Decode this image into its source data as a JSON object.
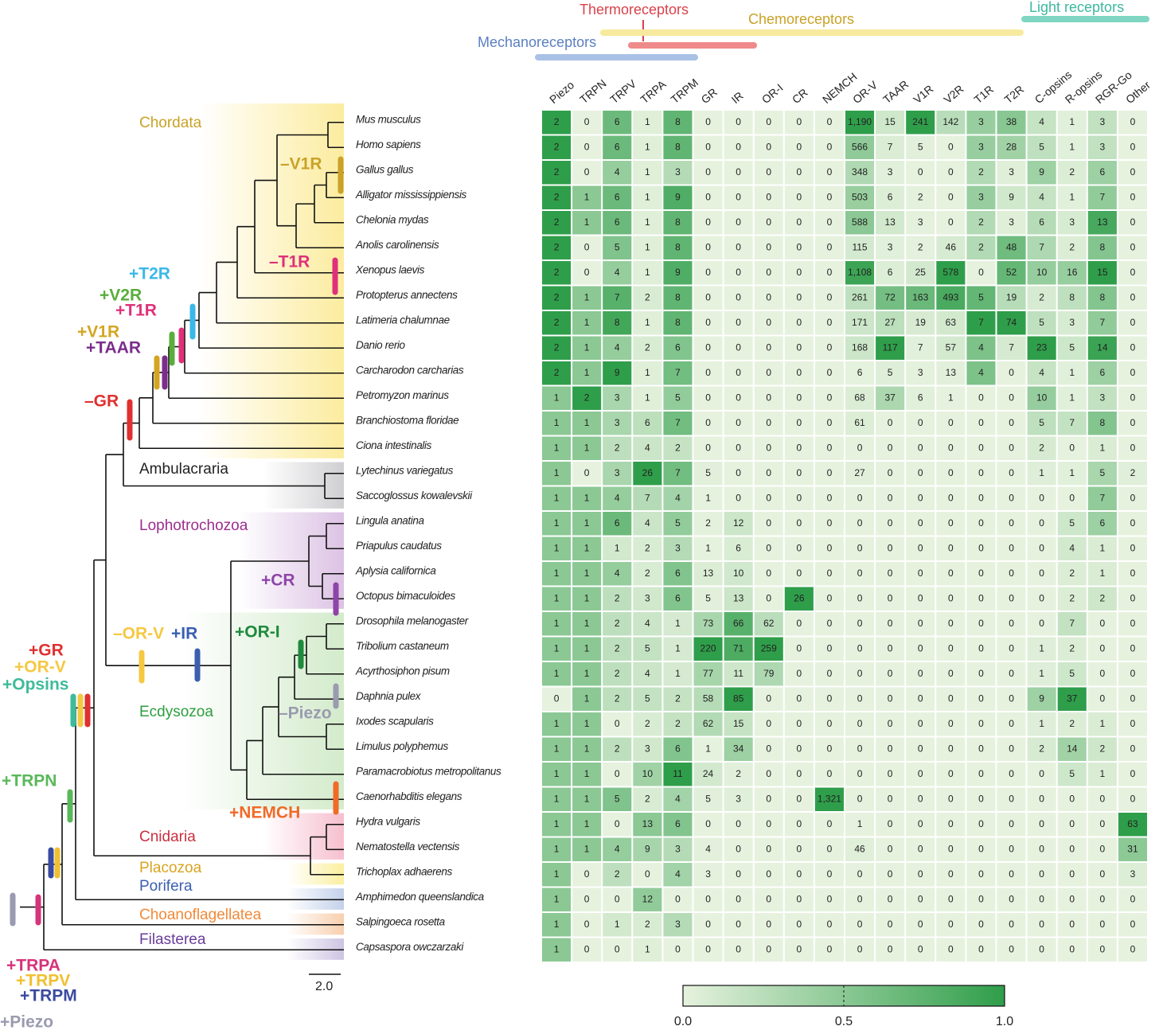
{
  "chart_data": {
    "type": "heatmap",
    "categories": [
      "Piezo",
      "TRPN",
      "TRPV",
      "TRPA",
      "TRPM",
      "GR",
      "IR",
      "OR-I",
      "CR",
      "NEMCH",
      "OR-V",
      "TAAR",
      "V1R",
      "V2R",
      "T1R",
      "T2R",
      "C-opsins",
      "R-opsins",
      "RGR-Go",
      "Other"
    ],
    "series": [
      {
        "name": "Mus musculus",
        "values": [
          2,
          0,
          6,
          1,
          8,
          0,
          0,
          0,
          0,
          0,
          1190,
          15,
          241,
          142,
          3,
          38,
          4,
          1,
          3,
          0
        ],
        "value_labels": [
          "2",
          "0",
          "6",
          "1",
          "8",
          "0",
          "0",
          "0",
          "0",
          "0",
          "1,190",
          "15",
          "241",
          "142",
          "3",
          "38",
          "4",
          "1",
          "3",
          "0"
        ]
      },
      {
        "name": "Homo sapiens",
        "values": [
          2,
          0,
          6,
          1,
          8,
          0,
          0,
          0,
          0,
          0,
          566,
          7,
          5,
          0,
          3,
          28,
          5,
          1,
          3,
          0
        ]
      },
      {
        "name": "Gallus gallus",
        "values": [
          2,
          0,
          4,
          1,
          3,
          0,
          0,
          0,
          0,
          0,
          348,
          3,
          0,
          0,
          2,
          3,
          9,
          2,
          6,
          0
        ]
      },
      {
        "name": "Alligator mississippiensis",
        "values": [
          2,
          1,
          6,
          1,
          9,
          0,
          0,
          0,
          0,
          0,
          503,
          6,
          2,
          0,
          3,
          9,
          4,
          1,
          7,
          0
        ]
      },
      {
        "name": "Chelonia mydas",
        "values": [
          2,
          1,
          6,
          1,
          8,
          0,
          0,
          0,
          0,
          0,
          588,
          13,
          3,
          0,
          2,
          3,
          6,
          3,
          13,
          0
        ]
      },
      {
        "name": "Anolis carolinensis",
        "values": [
          2,
          0,
          5,
          1,
          8,
          0,
          0,
          0,
          0,
          0,
          115,
          3,
          2,
          46,
          2,
          48,
          7,
          2,
          8,
          0
        ]
      },
      {
        "name": "Xenopus laevis",
        "values": [
          2,
          0,
          4,
          1,
          9,
          0,
          0,
          0,
          0,
          0,
          1108,
          6,
          25,
          578,
          0,
          52,
          10,
          16,
          15,
          0
        ],
        "value_labels": [
          "2",
          "0",
          "4",
          "1",
          "9",
          "0",
          "0",
          "0",
          "0",
          "0",
          "1,108",
          "6",
          "25",
          "578",
          "0",
          "52",
          "10",
          "16",
          "15",
          "0"
        ]
      },
      {
        "name": "Protopterus annectens",
        "values": [
          2,
          1,
          7,
          2,
          8,
          0,
          0,
          0,
          0,
          0,
          261,
          72,
          163,
          493,
          5,
          19,
          2,
          8,
          8,
          0
        ]
      },
      {
        "name": "Latimeria chalumnae",
        "values": [
          2,
          1,
          8,
          1,
          8,
          0,
          0,
          0,
          0,
          0,
          171,
          27,
          19,
          63,
          7,
          74,
          5,
          3,
          7,
          0
        ]
      },
      {
        "name": "Danio rerio",
        "values": [
          2,
          1,
          4,
          2,
          6,
          0,
          0,
          0,
          0,
          0,
          168,
          117,
          7,
          57,
          4,
          7,
          23,
          5,
          14,
          0
        ]
      },
      {
        "name": "Carcharodon carcharias",
        "values": [
          2,
          1,
          9,
          1,
          7,
          0,
          0,
          0,
          0,
          0,
          6,
          5,
          3,
          13,
          4,
          0,
          4,
          1,
          6,
          0
        ]
      },
      {
        "name": "Petromyzon marinus",
        "values": [
          1,
          2,
          3,
          1,
          5,
          0,
          0,
          0,
          0,
          0,
          68,
          37,
          6,
          1,
          0,
          0,
          10,
          1,
          3,
          0
        ]
      },
      {
        "name": "Branchiostoma floridae",
        "values": [
          1,
          1,
          3,
          6,
          7,
          0,
          0,
          0,
          0,
          0,
          61,
          0,
          0,
          0,
          0,
          0,
          5,
          7,
          8,
          0
        ]
      },
      {
        "name": "Ciona intestinalis",
        "values": [
          1,
          1,
          2,
          4,
          2,
          0,
          0,
          0,
          0,
          0,
          0,
          0,
          0,
          0,
          0,
          0,
          2,
          0,
          1,
          0
        ]
      },
      {
        "name": "Lytechinus variegatus",
        "values": [
          1,
          0,
          3,
          26,
          7,
          5,
          0,
          0,
          0,
          0,
          27,
          0,
          0,
          0,
          0,
          0,
          1,
          1,
          5,
          2
        ]
      },
      {
        "name": "Saccoglossus kowalevskii",
        "values": [
          1,
          1,
          4,
          7,
          4,
          1,
          0,
          0,
          0,
          0,
          0,
          0,
          0,
          0,
          0,
          0,
          0,
          0,
          7,
          0
        ]
      },
      {
        "name": "Lingula anatina",
        "values": [
          1,
          1,
          6,
          4,
          5,
          2,
          12,
          0,
          0,
          0,
          0,
          0,
          0,
          0,
          0,
          0,
          0,
          5,
          6,
          0
        ]
      },
      {
        "name": "Priapulus caudatus",
        "values": [
          1,
          1,
          1,
          2,
          3,
          1,
          6,
          0,
          0,
          0,
          0,
          0,
          0,
          0,
          0,
          0,
          0,
          4,
          1,
          0
        ]
      },
      {
        "name": "Aplysia californica",
        "values": [
          1,
          1,
          4,
          2,
          6,
          13,
          10,
          0,
          0,
          0,
          0,
          0,
          0,
          0,
          0,
          0,
          0,
          2,
          1,
          0
        ]
      },
      {
        "name": "Octopus bimaculoides",
        "values": [
          1,
          1,
          2,
          3,
          6,
          5,
          13,
          0,
          26,
          0,
          0,
          0,
          0,
          0,
          0,
          0,
          0,
          2,
          2,
          0
        ]
      },
      {
        "name": "Drosophila melanogaster",
        "values": [
          1,
          1,
          2,
          4,
          1,
          73,
          66,
          62,
          0,
          0,
          0,
          0,
          0,
          0,
          0,
          0,
          0,
          7,
          0,
          0
        ]
      },
      {
        "name": "Tribolium castaneum",
        "values": [
          1,
          1,
          2,
          5,
          1,
          220,
          71,
          259,
          0,
          0,
          0,
          0,
          0,
          0,
          0,
          0,
          1,
          2,
          0,
          0
        ]
      },
      {
        "name": "Acyrthosiphon pisum",
        "values": [
          1,
          1,
          2,
          4,
          1,
          77,
          11,
          79,
          0,
          0,
          0,
          0,
          0,
          0,
          0,
          0,
          1,
          5,
          0,
          0
        ]
      },
      {
        "name": "Daphnia pulex",
        "values": [
          0,
          1,
          2,
          5,
          2,
          58,
          85,
          0,
          0,
          0,
          0,
          0,
          0,
          0,
          0,
          0,
          9,
          37,
          0,
          0
        ]
      },
      {
        "name": "Ixodes scapularis",
        "values": [
          1,
          1,
          0,
          2,
          2,
          62,
          15,
          0,
          0,
          0,
          0,
          0,
          0,
          0,
          0,
          0,
          1,
          2,
          1,
          0
        ]
      },
      {
        "name": "Limulus polyphemus",
        "values": [
          1,
          1,
          2,
          3,
          6,
          1,
          34,
          0,
          0,
          0,
          0,
          0,
          0,
          0,
          0,
          0,
          2,
          14,
          2,
          0
        ]
      },
      {
        "name": "Paramacrobiotus metropolitanus",
        "values": [
          1,
          1,
          0,
          10,
          11,
          24,
          2,
          0,
          0,
          0,
          0,
          0,
          0,
          0,
          0,
          0,
          0,
          5,
          1,
          0
        ]
      },
      {
        "name": "Caenorhabditis elegans",
        "values": [
          1,
          1,
          5,
          2,
          4,
          5,
          3,
          0,
          0,
          1321,
          0,
          0,
          0,
          0,
          0,
          0,
          0,
          0,
          0,
          0
        ],
        "value_labels": [
          "1",
          "1",
          "5",
          "2",
          "4",
          "5",
          "3",
          "0",
          "0",
          "1,321",
          "0",
          "0",
          "0",
          "0",
          "0",
          "0",
          "0",
          "0",
          "0",
          "0"
        ]
      },
      {
        "name": "Hydra vulgaris",
        "values": [
          1,
          1,
          0,
          13,
          6,
          0,
          0,
          0,
          0,
          0,
          1,
          0,
          0,
          0,
          0,
          0,
          0,
          0,
          0,
          63
        ]
      },
      {
        "name": "Nematostella vectensis",
        "values": [
          1,
          1,
          4,
          9,
          3,
          4,
          0,
          0,
          0,
          0,
          46,
          0,
          0,
          0,
          0,
          0,
          0,
          0,
          0,
          31
        ]
      },
      {
        "name": "Trichoplax adhaerens",
        "values": [
          1,
          0,
          2,
          0,
          4,
          3,
          0,
          0,
          0,
          0,
          0,
          0,
          0,
          0,
          0,
          0,
          0,
          0,
          0,
          3
        ]
      },
      {
        "name": "Amphimedon queenslandica",
        "values": [
          1,
          0,
          0,
          12,
          0,
          0,
          0,
          0,
          0,
          0,
          0,
          0,
          0,
          0,
          0,
          0,
          0,
          0,
          0,
          0
        ]
      },
      {
        "name": "Salpingoeca rosetta",
        "values": [
          1,
          0,
          1,
          2,
          3,
          0,
          0,
          0,
          0,
          0,
          0,
          0,
          0,
          0,
          0,
          0,
          0,
          0,
          0,
          0
        ]
      },
      {
        "name": "Capsaspora owczarzaki",
        "values": [
          1,
          0,
          0,
          1,
          0,
          0,
          0,
          0,
          0,
          0,
          0,
          0,
          0,
          0,
          0,
          0,
          0,
          0,
          0,
          0
        ]
      }
    ],
    "colorscale": [
      "#e6f2de",
      "#2f9e4a"
    ],
    "colorbar": {
      "lim": [
        0,
        1
      ],
      "ticks": [
        {
          "value": 0,
          "label": "0.0"
        },
        {
          "value": 0.5,
          "label": "0.5"
        },
        {
          "value": 1,
          "label": "1.0"
        }
      ]
    },
    "receptor_groups": [
      {
        "name": "Mechanoreceptors",
        "color": "#5b7fc0",
        "bar": "#a9c1e6"
      },
      {
        "name": "Thermoreceptors",
        "color": "#d9424a",
        "bar": "#ef8a8a"
      },
      {
        "name": "Chemoreceptors",
        "color": "#c9a227",
        "bar": "#f7ea9f"
      },
      {
        "name": "Light receptors",
        "color": "#3cb8a0",
        "bar": "#7fd6c2"
      }
    ],
    "clades": [
      {
        "name": "Chordata",
        "color": "#c9a227",
        "shade": "#fcec9f"
      },
      {
        "name": "Ambulacraria",
        "color": "#222222",
        "shade": "#cfcfd2"
      },
      {
        "name": "Lophotrochozoa",
        "color": "#9b2d8e",
        "shade": "#dcc2e4"
      },
      {
        "name": "Ecdysozoa",
        "color": "#2e9e3e",
        "shade": "#d3ebcb"
      },
      {
        "name": "Cnidaria",
        "color": "#c83040",
        "shade": "#f6bfd0"
      },
      {
        "name": "Placozoa",
        "color": "#d9a420",
        "shade": "#fbef9f"
      },
      {
        "name": "Porifera",
        "color": "#3a5fb0",
        "shade": "#c4d1ea"
      },
      {
        "name": "Choanoflagellatea",
        "color": "#f08a3a",
        "shade": "#f8cfae"
      },
      {
        "name": "Filasterea",
        "color": "#6a3d9a",
        "shade": "#cdc4e2"
      }
    ],
    "events": [
      {
        "text": "–V1R",
        "color": "#c9a227"
      },
      {
        "text": "–T1R",
        "color": "#e0307a"
      },
      {
        "text": "+T2R",
        "color": "#3bb8e8"
      },
      {
        "text": "+V2R",
        "color": "#5aad3c"
      },
      {
        "text": "+T1R",
        "color": "#e0307a"
      },
      {
        "text": "+V1R",
        "color": "#d4a520"
      },
      {
        "text": "+TAAR",
        "color": "#7b2d8b"
      },
      {
        "text": "–GR",
        "color": "#e03030"
      },
      {
        "text": "–OR-V",
        "color": "#f5c842"
      },
      {
        "text": "+IR",
        "color": "#3a5fb0"
      },
      {
        "text": "+CR",
        "color": "#8e44a8"
      },
      {
        "text": "+OR-I",
        "color": "#1e8a3c"
      },
      {
        "text": "–Piezo",
        "color": "#9a9ab0"
      },
      {
        "text": "+NEMCH",
        "color": "#f06a28"
      },
      {
        "text": "+GR",
        "color": "#e03030"
      },
      {
        "text": "+OR-V",
        "color": "#f5c842"
      },
      {
        "text": "+Opsins",
        "color": "#3dbb9a"
      },
      {
        "text": "+TRPN",
        "color": "#5ab85a"
      },
      {
        "text": "+TRPA",
        "color": "#d6337a"
      },
      {
        "text": "+TRPV",
        "color": "#f0c030"
      },
      {
        "text": "+TRPM",
        "color": "#3a4aa0"
      },
      {
        "text": "+Piezo",
        "color": "#9a9ab0"
      }
    ],
    "scale_bar": "2.0"
  }
}
